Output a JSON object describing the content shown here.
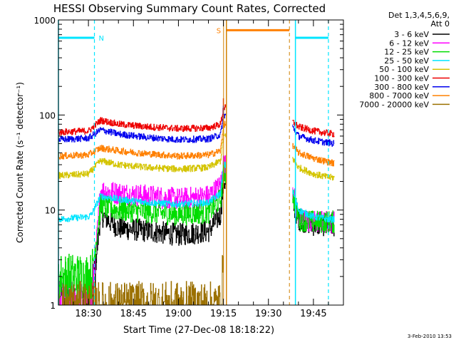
{
  "chart_data": {
    "type": "line",
    "title": "HESSI Observing Summary Count Rates, Corrected",
    "xlabel": "Start Time (27-Dec-08 18:18:22)",
    "ylabel": "Corrected Count Rate (s⁻¹ detector⁻¹)",
    "y_scale": "log",
    "ylim": [
      1,
      1000
    ],
    "xlim": [
      "18:20",
      "19:55"
    ],
    "x_ticks": [
      "18:30",
      "18:45",
      "19:00",
      "19:15",
      "19:30",
      "19:45"
    ],
    "y_ticks": [
      "1",
      "10",
      "100",
      "1000"
    ],
    "grid": false,
    "legend_position": "right",
    "legend_header": [
      "Det 1,3,4,5,6,9,",
      "Att 0"
    ],
    "footer": "3-Feb-2010 13:53",
    "colors": {
      "s3_6": "#000000",
      "s6_12": "#ff00ff",
      "s12_25": "#00dd00",
      "s25_50": "#00e5ff",
      "s50_100": "#d4c400",
      "s100_300": "#ee0000",
      "s300_800": "#0000ee",
      "s800_7000": "#ff8000",
      "s7000_20000": "#9b7000",
      "flag": "#00e5ff",
      "saa": "#ff8000",
      "saa_vline": "#d08000"
    },
    "flag_bars": [
      {
        "label": "N",
        "x_range": [
          "18:20",
          "18:32"
        ],
        "y": 650
      },
      {
        "label": "",
        "x_range": [
          "19:39",
          "19:50"
        ],
        "y": 650
      }
    ],
    "saa_bar": {
      "label": "S",
      "x_range": [
        "19:16",
        "19:37"
      ],
      "y": 780
    },
    "gaps": [
      [
        "19:16",
        "19:38"
      ]
    ],
    "series": [
      {
        "name": "3 - 6 keV",
        "key": "s3_6",
        "x": [
          "18:20",
          "18:30",
          "18:31",
          "18:34",
          "18:40",
          "18:50",
          "19:00",
          "19:10",
          "19:14",
          "19:15",
          "19:38",
          "19:40",
          "19:45",
          "19:50",
          "19:52"
        ],
        "values": [
          1,
          1,
          1,
          9,
          6.5,
          6,
          5.5,
          6,
          9,
          20,
          12,
          8,
          7,
          7,
          7
        ]
      },
      {
        "name": "6 - 12 keV",
        "key": "s6_12",
        "x": [
          "18:20",
          "18:30",
          "18:31",
          "18:34",
          "18:40",
          "18:50",
          "19:00",
          "19:10",
          "19:14",
          "19:15",
          "19:38",
          "19:40",
          "19:45",
          "19:50",
          "19:52"
        ],
        "values": [
          1,
          1,
          1,
          16,
          15,
          14,
          13,
          14,
          18,
          30,
          17,
          8,
          7.5,
          7.5,
          7.5
        ]
      },
      {
        "name": "12 - 25 keV",
        "key": "s12_25",
        "x": [
          "18:20",
          "18:30",
          "18:31",
          "18:34",
          "18:40",
          "18:50",
          "19:00",
          "19:10",
          "19:14",
          "19:15",
          "19:38",
          "19:40",
          "19:45",
          "19:50",
          "19:52"
        ],
        "values": [
          2,
          2,
          2,
          11,
          10,
          9.5,
          9,
          9.5,
          13,
          25,
          15,
          8,
          7.5,
          7.5,
          7.5
        ]
      },
      {
        "name": "25 - 50 keV",
        "key": "s25_50",
        "x": [
          "18:20",
          "18:30",
          "18:31",
          "18:34",
          "18:40",
          "18:50",
          "19:00",
          "19:10",
          "19:14",
          "19:15",
          "19:38",
          "19:40",
          "19:45",
          "19:50",
          "19:52"
        ],
        "values": [
          8,
          8.5,
          9,
          14,
          13,
          12,
          11.5,
          12,
          15,
          30,
          16,
          10,
          8.5,
          8,
          8
        ]
      },
      {
        "name": "50 - 100 keV",
        "key": "s50_100",
        "x": [
          "18:20",
          "18:30",
          "18:31",
          "18:34",
          "18:40",
          "18:50",
          "19:00",
          "19:10",
          "19:14",
          "19:15",
          "19:38",
          "19:40",
          "19:45",
          "19:50",
          "19:52"
        ],
        "values": [
          23,
          24,
          26,
          33,
          30,
          28,
          27,
          28,
          33,
          60,
          35,
          28,
          24,
          22,
          22
        ]
      },
      {
        "name": "100 - 300 keV",
        "key": "s100_300",
        "x": [
          "18:20",
          "18:30",
          "18:31",
          "18:34",
          "18:40",
          "18:50",
          "19:00",
          "19:10",
          "19:14",
          "19:15",
          "19:38",
          "19:40",
          "19:45",
          "19:50",
          "19:52"
        ],
        "values": [
          66,
          68,
          72,
          88,
          80,
          75,
          72,
          73,
          80,
          120,
          85,
          75,
          68,
          64,
          63
        ]
      },
      {
        "name": "300 - 800 keV",
        "key": "s300_800",
        "x": [
          "18:20",
          "18:30",
          "18:31",
          "18:34",
          "18:40",
          "18:50",
          "19:00",
          "19:10",
          "19:14",
          "19:15",
          "19:38",
          "19:40",
          "19:45",
          "19:50",
          "19:52"
        ],
        "values": [
          55,
          57,
          60,
          70,
          63,
          58,
          55,
          56,
          62,
          100,
          75,
          60,
          54,
          51,
          50
        ]
      },
      {
        "name": "800 - 7000 keV",
        "key": "s800_7000",
        "x": [
          "18:20",
          "18:30",
          "18:31",
          "18:34",
          "18:40",
          "18:50",
          "19:00",
          "19:10",
          "19:14",
          "19:15",
          "19:38",
          "19:40",
          "19:45",
          "19:50",
          "19:52"
        ],
        "values": [
          37,
          38,
          40,
          45,
          42,
          39,
          37,
          38,
          42,
          80,
          48,
          40,
          35,
          32,
          31
        ]
      },
      {
        "name": "7000 - 20000 keV",
        "key": "s7000_20000",
        "x": [
          "18:20",
          "18:40",
          "19:00",
          "19:14",
          "19:15"
        ],
        "values": [
          1,
          1,
          1,
          1,
          3
        ]
      }
    ]
  }
}
